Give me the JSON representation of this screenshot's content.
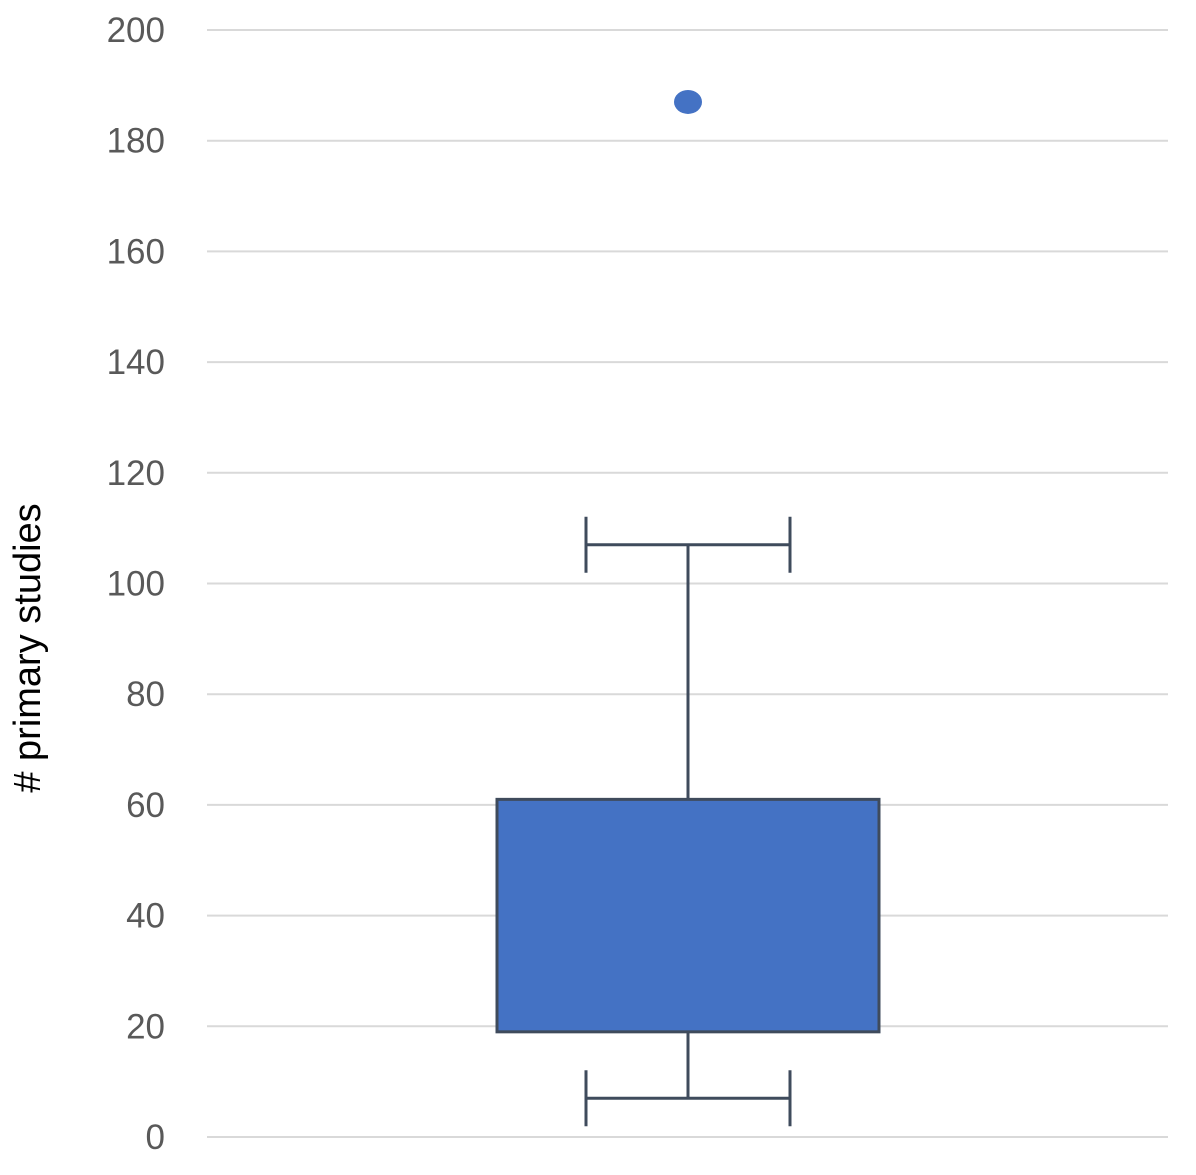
{
  "chart_data": {
    "type": "box",
    "title": "",
    "xlabel": "",
    "ylabel": "# primary studies",
    "ylim": [
      0,
      200
    ],
    "y_ticks": [
      0,
      20,
      40,
      60,
      80,
      100,
      120,
      140,
      160,
      180,
      200
    ],
    "y_tick_labels": [
      "0",
      "20",
      "40",
      "60",
      "80",
      "100",
      "120",
      "140",
      "160",
      "180",
      "200"
    ],
    "grid": true,
    "legend": "none",
    "boxes": [
      {
        "whisker_low": 7,
        "q1": 19,
        "q3": 61,
        "whisker_high": 107,
        "outliers": [
          187
        ]
      }
    ],
    "colors": {
      "box_fill": "#4472c4",
      "box_stroke": "#3f4b5c",
      "whisker": "#3f4b5c",
      "outlier": "#4472c4",
      "grid": "#d9d9d9",
      "tick_text": "#595959",
      "axis_title_text": "#000000"
    }
  }
}
